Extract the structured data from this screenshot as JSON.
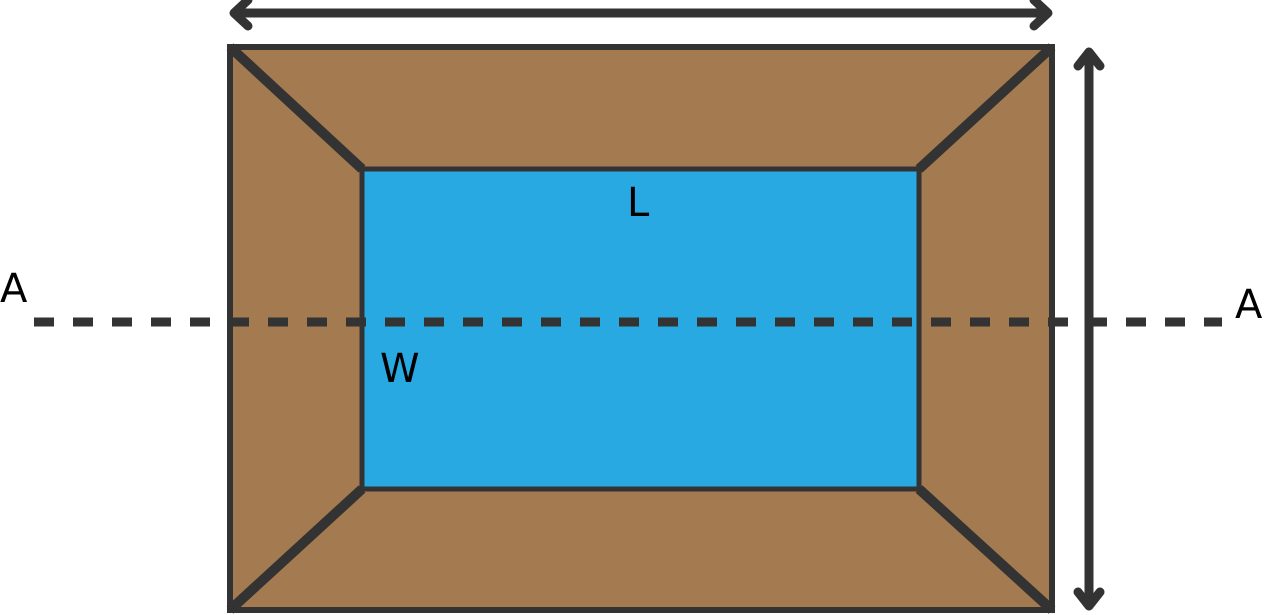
{
  "labels": {
    "length": "L",
    "width": "W",
    "section_left": "A",
    "section_right": "A"
  },
  "colors": {
    "embankment": "#a47a50",
    "water": "#29a9e2",
    "stroke": "#333333",
    "text": "#000000"
  },
  "icons": {
    "top_dimension": "double-headed-arrow-horizontal",
    "side_dimension": "double-headed-arrow-vertical",
    "section_line": "dashed-line"
  }
}
